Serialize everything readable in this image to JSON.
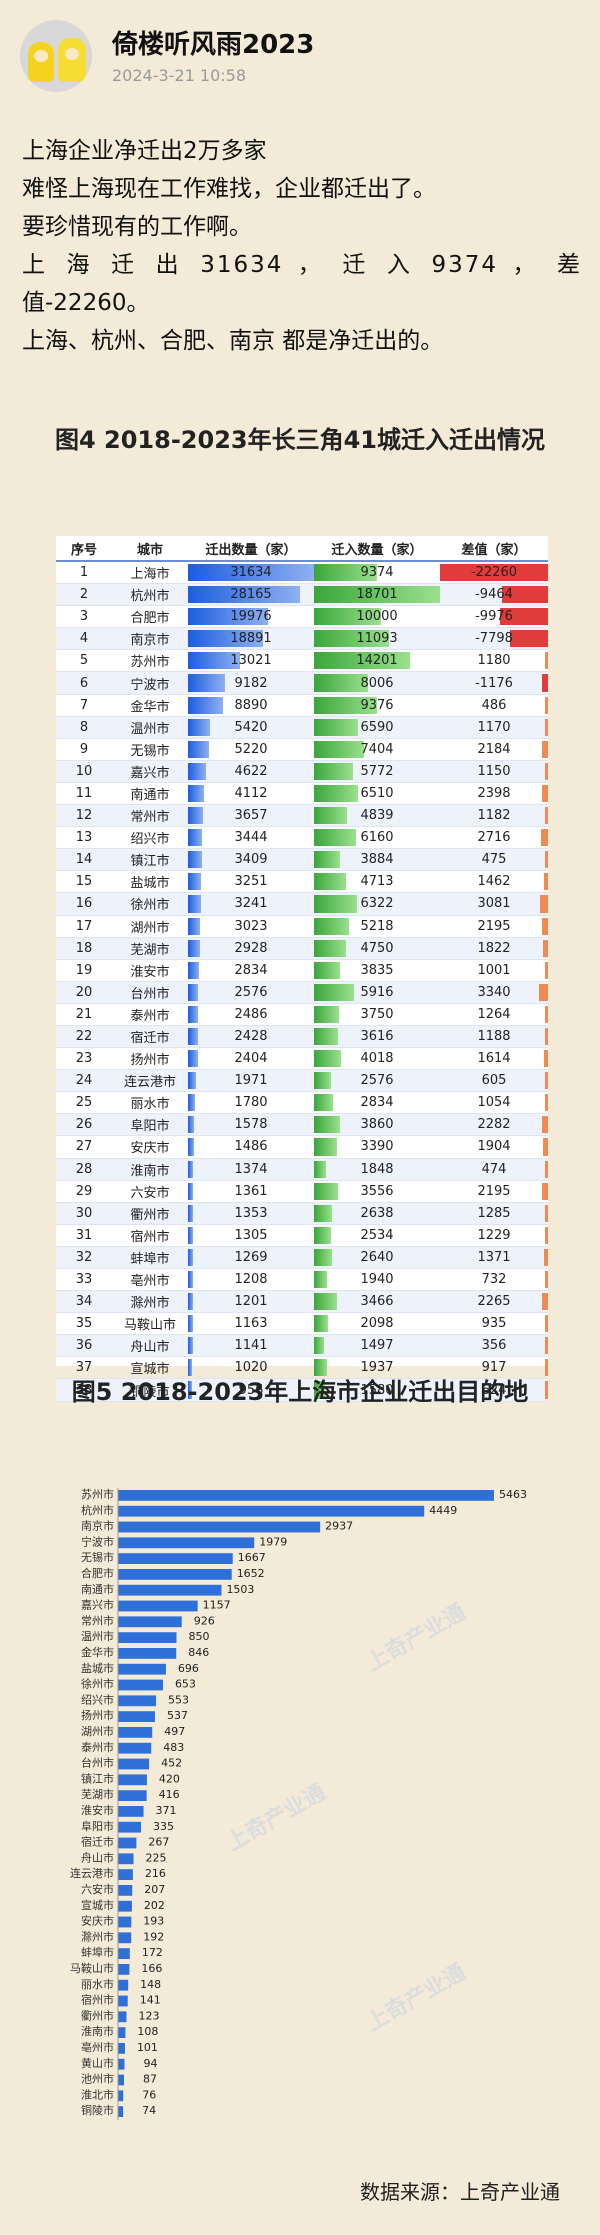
{
  "post": {
    "username": "倚楼听风雨2023",
    "timestamp": "2024-3-21 10:58",
    "lines": [
      "上海企业净迁出2万多家",
      "难怪上海现在工作难找，企业都迁出了。",
      "要珍惜现有的工作啊。",
      "上 海 迁 出 31634 ， 迁 入 9374 ， 差",
      "值-22260。",
      "上海、杭州、合肥、南京 都是净迁出的。"
    ]
  },
  "figure4": {
    "title": "图4 2018-2023年长三角41城迁入迁出情况",
    "headers": [
      "序号",
      "城市",
      "迁出数量（家）",
      "迁入数量（家）",
      "差值（家）"
    ],
    "rows": [
      [
        "1",
        "上海市",
        "31634",
        "9374",
        "-22260"
      ],
      [
        "2",
        "杭州市",
        "28165",
        "18701",
        "-9464"
      ],
      [
        "3",
        "合肥市",
        "19976",
        "10000",
        "-9976"
      ],
      [
        "4",
        "南京市",
        "18891",
        "11093",
        "-7798"
      ],
      [
        "5",
        "苏州市",
        "13021",
        "14201",
        "1180"
      ],
      [
        "6",
        "宁波市",
        "9182",
        "8006",
        "-1176"
      ],
      [
        "7",
        "金华市",
        "8890",
        "9376",
        "486"
      ],
      [
        "8",
        "温州市",
        "5420",
        "6590",
        "1170"
      ],
      [
        "9",
        "无锡市",
        "5220",
        "7404",
        "2184"
      ],
      [
        "10",
        "嘉兴市",
        "4622",
        "5772",
        "1150"
      ],
      [
        "11",
        "南通市",
        "4112",
        "6510",
        "2398"
      ],
      [
        "12",
        "常州市",
        "3657",
        "4839",
        "1182"
      ],
      [
        "13",
        "绍兴市",
        "3444",
        "6160",
        "2716"
      ],
      [
        "14",
        "镇江市",
        "3409",
        "3884",
        "475"
      ],
      [
        "15",
        "盐城市",
        "3251",
        "4713",
        "1462"
      ],
      [
        "16",
        "徐州市",
        "3241",
        "6322",
        "3081"
      ],
      [
        "17",
        "湖州市",
        "3023",
        "5218",
        "2195"
      ],
      [
        "18",
        "芜湖市",
        "2928",
        "4750",
        "1822"
      ],
      [
        "19",
        "淮安市",
        "2834",
        "3835",
        "1001"
      ],
      [
        "20",
        "台州市",
        "2576",
        "5916",
        "3340"
      ],
      [
        "21",
        "泰州市",
        "2486",
        "3750",
        "1264"
      ],
      [
        "22",
        "宿迁市",
        "2428",
        "3616",
        "1188"
      ],
      [
        "23",
        "扬州市",
        "2404",
        "4018",
        "1614"
      ],
      [
        "24",
        "连云港市",
        "1971",
        "2576",
        "605"
      ],
      [
        "25",
        "丽水市",
        "1780",
        "2834",
        "1054"
      ],
      [
        "26",
        "阜阳市",
        "1578",
        "3860",
        "2282"
      ],
      [
        "27",
        "安庆市",
        "1486",
        "3390",
        "1904"
      ],
      [
        "28",
        "淮南市",
        "1374",
        "1848",
        "474"
      ],
      [
        "29",
        "六安市",
        "1361",
        "3556",
        "2195"
      ],
      [
        "30",
        "衢州市",
        "1353",
        "2638",
        "1285"
      ],
      [
        "31",
        "宿州市",
        "1305",
        "2534",
        "1229"
      ],
      [
        "32",
        "蚌埠市",
        "1269",
        "2640",
        "1371"
      ],
      [
        "33",
        "亳州市",
        "1208",
        "1940",
        "732"
      ],
      [
        "34",
        "滁州市",
        "1201",
        "3466",
        "2265"
      ],
      [
        "35",
        "马鞍山市",
        "1163",
        "2098",
        "935"
      ],
      [
        "36",
        "舟山市",
        "1141",
        "1497",
        "356"
      ],
      [
        "37",
        "宣城市",
        "1020",
        "1937",
        "917"
      ],
      [
        "38",
        "铜陵市",
        "956",
        "1580",
        "624"
      ]
    ]
  },
  "figure5": {
    "title": "图5 2018-2023年上海市企业迁出目的地",
    "watermark": "上奇产业通"
  },
  "chart_data": {
    "type": "bar",
    "orientation": "horizontal",
    "title": "图5 2018-2023年上海市企业迁出目的地",
    "categories": [
      "苏州市",
      "杭州市",
      "南京市",
      "宁波市",
      "无锡市",
      "合肥市",
      "南通市",
      "嘉兴市",
      "常州市",
      "温州市",
      "金华市",
      "盐城市",
      "徐州市",
      "绍兴市",
      "扬州市",
      "湖州市",
      "泰州市",
      "台州市",
      "镇江市",
      "芜湖市",
      "淮安市",
      "阜阳市",
      "宿迁市",
      "舟山市",
      "连云港市",
      "六安市",
      "宣城市",
      "安庆市",
      "滁州市",
      "蚌埠市",
      "马鞍山市",
      "丽水市",
      "宿州市",
      "衢州市",
      "淮南市",
      "亳州市",
      "黄山市",
      "池州市",
      "淮北市",
      "铜陵市"
    ],
    "values": [
      5463,
      4449,
      2937,
      1979,
      1667,
      1652,
      1503,
      1157,
      926,
      850,
      846,
      696,
      653,
      553,
      537,
      497,
      483,
      452,
      420,
      416,
      371,
      335,
      267,
      225,
      216,
      207,
      202,
      193,
      192,
      172,
      166,
      148,
      141,
      123,
      108,
      101,
      94,
      87,
      76,
      74
    ],
    "color": "#2f6fd8"
  },
  "source": "数据来源：上奇产业通"
}
